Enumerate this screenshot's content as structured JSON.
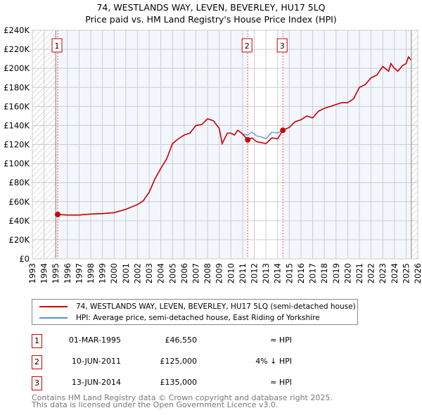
{
  "chart_data": {
    "type": "line",
    "title": "74, WESTLANDS WAY, LEVEN, BEVERLEY, HU17 5LQ",
    "subtitle": "Price paid vs. HM Land Registry's House Price Index (HPI)",
    "xlim": [
      1993,
      2026
    ],
    "ylim": [
      0,
      240000
    ],
    "yticks": [
      0,
      20000,
      40000,
      60000,
      80000,
      100000,
      120000,
      140000,
      160000,
      180000,
      200000,
      220000,
      240000
    ],
    "ytick_labels": [
      "£0",
      "£20K",
      "£40K",
      "£60K",
      "£80K",
      "£100K",
      "£120K",
      "£140K",
      "£160K",
      "£180K",
      "£200K",
      "£220K",
      "£240K"
    ],
    "xtick_labels": [
      "1993",
      "1994",
      "1995",
      "1996",
      "1997",
      "1998",
      "1999",
      "2000",
      "2001",
      "2002",
      "2003",
      "2004",
      "2005",
      "2006",
      "2007",
      "2008",
      "2009",
      "2010",
      "2011",
      "2012",
      "2013",
      "2014",
      "2015",
      "2016",
      "2017",
      "2018",
      "2019",
      "2020",
      "2021",
      "2022",
      "2023",
      "2024",
      "2025",
      "2026"
    ],
    "grid": true,
    "hatched_ranges": [
      [
        1993,
        1995.0
      ],
      [
        2025.45,
        2026
      ]
    ],
    "series": [
      {
        "name": "74, WESTLANDS WAY, LEVEN, BEVERLEY, HU17 5LQ (semi-detached house)",
        "color": "#cc0000",
        "x": [
          1995.17,
          1996,
          1997,
          1998,
          1999,
          2000,
          2001,
          2002,
          2002.5,
          2003,
          2003.5,
          2004,
          2004.5,
          2005,
          2005.5,
          2006,
          2006.5,
          2007,
          2007.5,
          2008,
          2008.5,
          2009,
          2009.25,
          2009.7,
          2010,
          2010.3,
          2010.6,
          2011,
          2011.44,
          2011.8,
          2012.2,
          2012.6,
          2013,
          2013.5,
          2014,
          2014.45,
          2015,
          2015.5,
          2016,
          2016.5,
          2017,
          2017.5,
          2018,
          2018.5,
          2019,
          2019.5,
          2020,
          2020.5,
          2021,
          2021.5,
          2022,
          2022.5,
          2023,
          2023.5,
          2023.7,
          2024,
          2024.3,
          2024.7,
          2025,
          2025.2,
          2025.4
        ],
        "y": [
          46550,
          46000,
          46000,
          47000,
          47500,
          48500,
          52000,
          57000,
          61000,
          70000,
          84000,
          95000,
          105000,
          121000,
          126000,
          130000,
          132000,
          140000,
          141000,
          147000,
          145000,
          137000,
          121000,
          132000,
          132000,
          130000,
          135000,
          131000,
          125000,
          127000,
          123000,
          122000,
          121000,
          127000,
          126000,
          135000,
          138000,
          144000,
          146000,
          150000,
          148000,
          155000,
          158000,
          160000,
          162000,
          164000,
          164000,
          168000,
          180000,
          183000,
          190000,
          193000,
          202000,
          197000,
          205000,
          200000,
          197000,
          203000,
          205000,
          212000,
          209000
        ]
      },
      {
        "name": "HPI: Average price, semi-detached house, East Riding of Yorkshire",
        "color": "#5b8fd6",
        "x": [
          1995.17,
          1996,
          1997,
          1998,
          1999,
          2000,
          2001,
          2002,
          2002.5,
          2003,
          2003.5,
          2004,
          2004.5,
          2005,
          2005.5,
          2006,
          2006.5,
          2007,
          2007.5,
          2008,
          2008.5,
          2009,
          2009.25,
          2009.7,
          2010,
          2010.3,
          2010.6,
          2011,
          2011.44,
          2011.8,
          2012.2,
          2012.6,
          2013,
          2013.5,
          2014,
          2014.45,
          2015,
          2015.5,
          2016,
          2016.5,
          2017,
          2017.5,
          2018,
          2018.5,
          2019,
          2019.5,
          2020,
          2020.5,
          2021,
          2021.5,
          2022,
          2022.5,
          2023,
          2023.5,
          2023.7,
          2024,
          2024.3,
          2024.7,
          2025,
          2025.2,
          2025.4
        ],
        "y": [
          46550,
          46000,
          46000,
          47000,
          47500,
          48500,
          52000,
          57000,
          61000,
          70000,
          84000,
          95000,
          105000,
          121000,
          126000,
          130000,
          132000,
          140000,
          141000,
          147000,
          145000,
          137000,
          121000,
          132000,
          132000,
          130000,
          135000,
          131000,
          130000,
          133000,
          129000,
          128000,
          126000,
          133000,
          132000,
          135000,
          138000,
          144000,
          146000,
          150000,
          148000,
          155000,
          158000,
          160000,
          162000,
          164000,
          164000,
          168000,
          180000,
          183000,
          190000,
          193000,
          202000,
          197000,
          205000,
          200000,
          197000,
          203000,
          205000,
          212000,
          209000
        ]
      }
    ],
    "sales": [
      {
        "label": "1",
        "x": 1995.17,
        "y": 46550
      },
      {
        "label": "2",
        "x": 2011.44,
        "y": 125000
      },
      {
        "label": "3",
        "x": 2014.45,
        "y": 135000
      }
    ]
  },
  "legend": {
    "items": [
      {
        "label": "74, WESTLANDS WAY, LEVEN, BEVERLEY, HU17 5LQ (semi-detached house)",
        "color": "#cc0000"
      },
      {
        "label": "HPI: Average price, semi-detached house, East Riding of Yorkshire",
        "color": "#5b8fd6"
      }
    ]
  },
  "transactions": [
    {
      "num": "1",
      "date": "01-MAR-1995",
      "price": "£46,550",
      "relation": "≈ HPI"
    },
    {
      "num": "2",
      "date": "10-JUN-2011",
      "price": "£125,000",
      "relation": "4% ↓ HPI"
    },
    {
      "num": "3",
      "date": "13-JUN-2014",
      "price": "£135,000",
      "relation": "≈ HPI"
    }
  ],
  "footer": {
    "line1": "Contains HM Land Registry data © Crown copyright and database right 2025.",
    "line2": "This data is licensed under the Open Government Licence v3.0."
  }
}
